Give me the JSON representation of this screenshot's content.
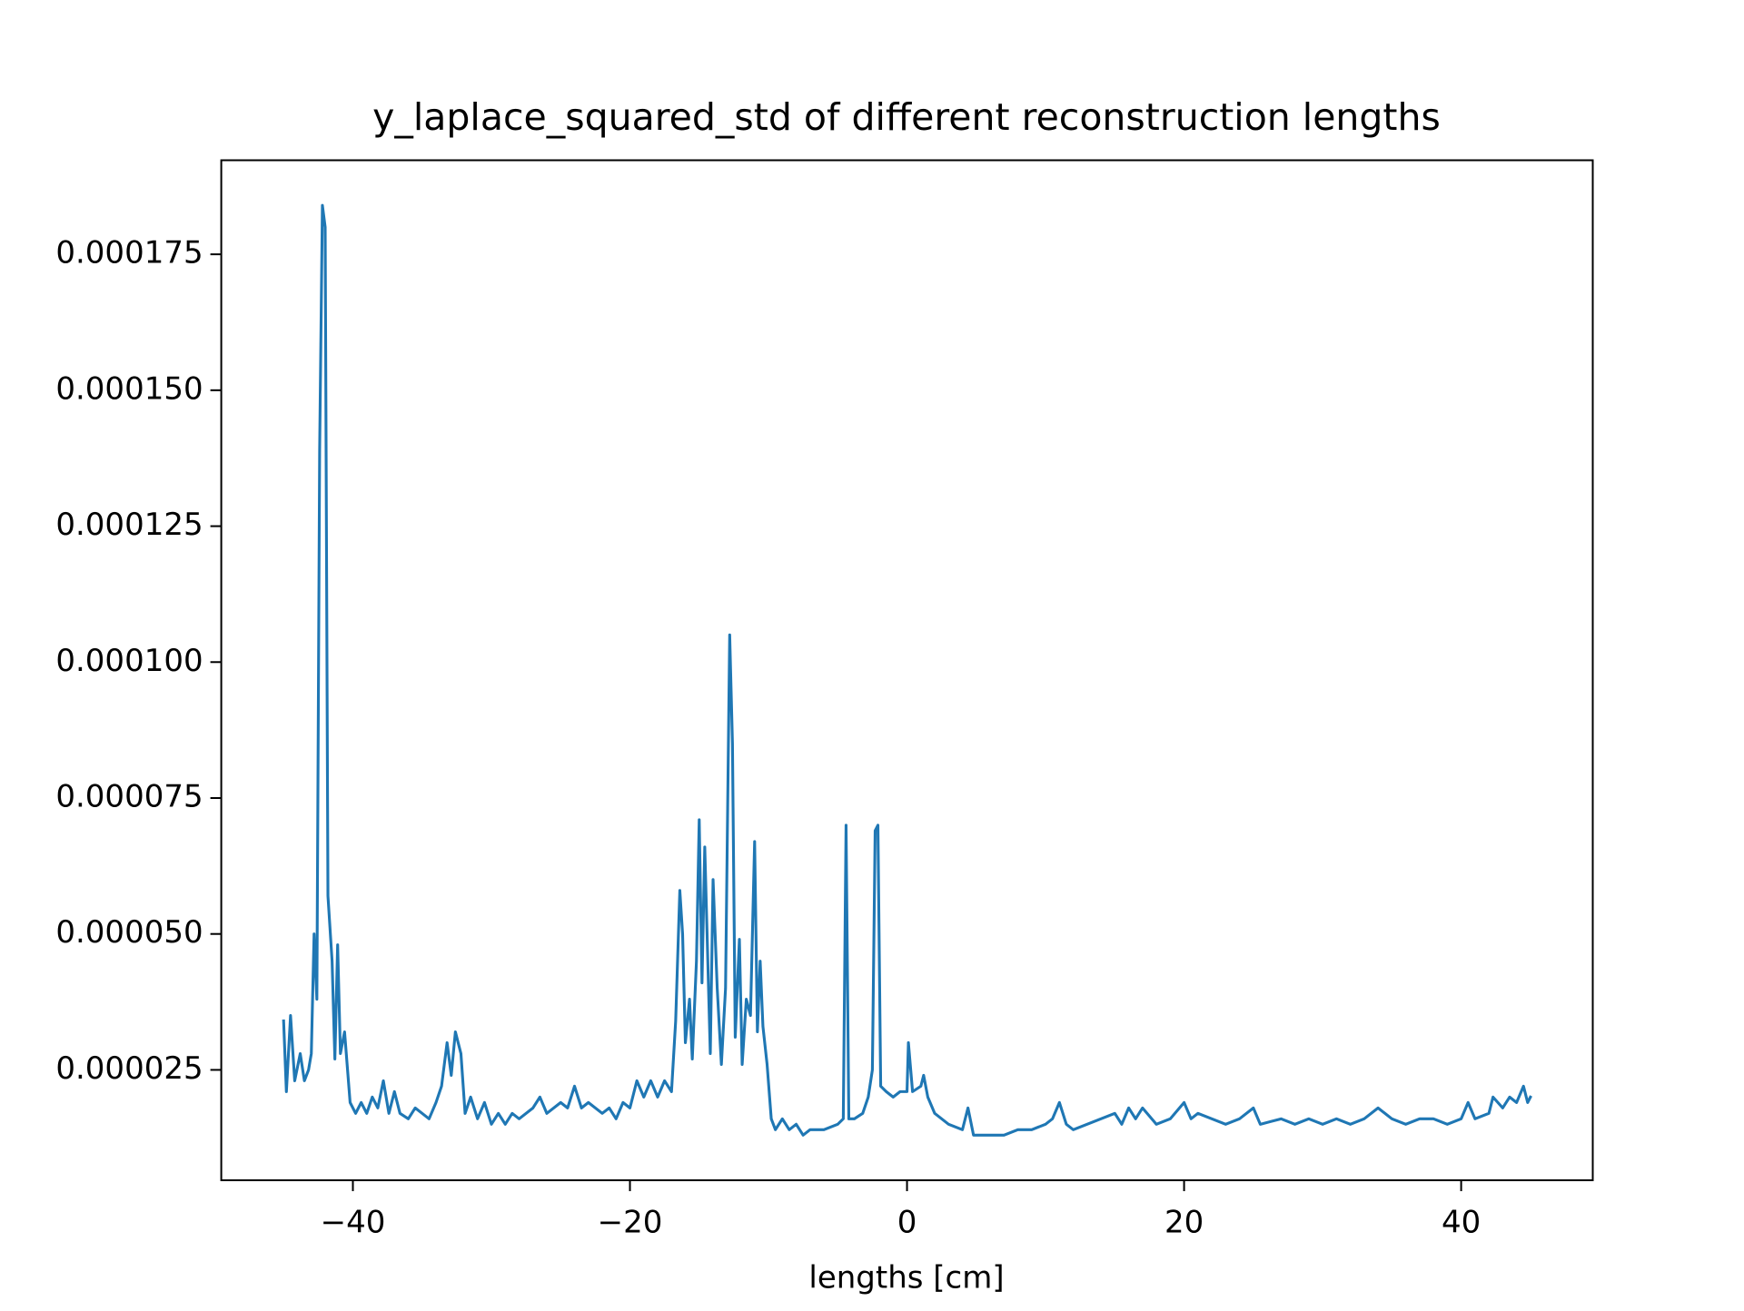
{
  "chart_data": {
    "type": "line",
    "title": "y_laplace_squared_std of different reconstruction lengths",
    "x_label": "lengths [cm]",
    "xlim": [
      -49.5,
      49.5
    ],
    "ylim": [
      4.7e-06,
      0.0001923
    ],
    "xticks": [
      {
        "value": -40,
        "label": "−40"
      },
      {
        "value": -20,
        "label": "−20"
      },
      0,
      20,
      40
    ],
    "yticks": [
      {
        "value": 2.5e-05,
        "label": "0.000025"
      },
      {
        "value": 5e-05,
        "label": "0.000050"
      },
      {
        "value": 7.5e-05,
        "label": "0.000075"
      },
      {
        "value": 0.0001,
        "label": "0.000100"
      },
      {
        "value": 0.000125,
        "label": "0.000125"
      },
      {
        "value": 0.00015,
        "label": "0.000150"
      },
      {
        "value": 0.000175,
        "label": "0.000175"
      }
    ],
    "grid": false,
    "color": "#1f77b4",
    "x": [
      -45,
      -44.8,
      -44.5,
      -44.2,
      -43.8,
      -43.5,
      -43.2,
      -43,
      -42.8,
      -42.6,
      -42.4,
      -42.2,
      -42,
      -41.8,
      -41.5,
      -41.3,
      -41.1,
      -40.9,
      -40.6,
      -40.2,
      -39.8,
      -39.4,
      -39,
      -38.6,
      -38.2,
      -37.8,
      -37.4,
      -37,
      -36.6,
      -36,
      -35.5,
      -35,
      -34.5,
      -34,
      -33.6,
      -33.2,
      -32.9,
      -32.6,
      -32.2,
      -31.9,
      -31.5,
      -31,
      -30.5,
      -30,
      -29.5,
      -29,
      -28.5,
      -28,
      -27,
      -26.5,
      -26,
      -25,
      -24.5,
      -24,
      -23.5,
      -23,
      -22,
      -21.5,
      -21,
      -20.5,
      -20,
      -19.5,
      -19,
      -18.5,
      -18,
      -17.5,
      -17,
      -16.7,
      -16.4,
      -16.2,
      -16,
      -15.7,
      -15.5,
      -15.2,
      -15,
      -14.8,
      -14.6,
      -14.4,
      -14.2,
      -14,
      -13.7,
      -13.4,
      -13.1,
      -12.8,
      -12.6,
      -12.4,
      -12.1,
      -11.9,
      -11.6,
      -11.3,
      -11,
      -10.8,
      -10.6,
      -10.4,
      -10.1,
      -9.8,
      -9.5,
      -9,
      -8.5,
      -8,
      -7.5,
      -7,
      -6,
      -5,
      -4.6,
      -4.4,
      -4.2,
      -3.8,
      -3.2,
      -2.8,
      -2.5,
      -2.3,
      -2.1,
      -1.9,
      -1.5,
      -1,
      -0.5,
      0,
      0.1,
      0.4,
      1,
      1.2,
      1.5,
      2,
      3,
      4,
      4.4,
      4.8,
      6,
      7,
      8,
      9,
      10,
      10.5,
      11,
      11.5,
      12,
      13,
      14,
      15,
      15.5,
      16,
      16.5,
      17,
      18,
      19,
      20,
      20.5,
      21,
      22,
      23,
      24,
      25,
      25.5,
      27,
      28,
      29,
      30,
      31,
      32,
      33,
      34,
      35,
      36,
      37,
      38,
      39,
      40,
      40.5,
      41,
      42,
      42.3,
      43,
      43.5,
      44,
      44.5,
      44.8,
      45
    ],
    "values": [
      3.4e-05,
      2.1e-05,
      3.5e-05,
      2.3e-05,
      2.8e-05,
      2.3e-05,
      2.5e-05,
      2.8e-05,
      5e-05,
      3.8e-05,
      0.000139,
      0.000184,
      0.00018,
      5.7e-05,
      4.5e-05,
      2.7e-05,
      4.8e-05,
      2.8e-05,
      3.2e-05,
      1.9e-05,
      1.7e-05,
      1.9e-05,
      1.7e-05,
      2e-05,
      1.8e-05,
      2.3e-05,
      1.7e-05,
      2.1e-05,
      1.7e-05,
      1.6e-05,
      1.8e-05,
      1.7e-05,
      1.6e-05,
      1.9e-05,
      2.2e-05,
      3e-05,
      2.4e-05,
      3.2e-05,
      2.8e-05,
      1.7e-05,
      2e-05,
      1.6e-05,
      1.9e-05,
      1.5e-05,
      1.7e-05,
      1.5e-05,
      1.7e-05,
      1.6e-05,
      1.8e-05,
      2e-05,
      1.7e-05,
      1.9e-05,
      1.8e-05,
      2.2e-05,
      1.8e-05,
      1.9e-05,
      1.7e-05,
      1.8e-05,
      1.6e-05,
      1.9e-05,
      1.8e-05,
      2.3e-05,
      2e-05,
      2.3e-05,
      2e-05,
      2.3e-05,
      2.1e-05,
      3.4e-05,
      5.8e-05,
      5e-05,
      3e-05,
      3.8e-05,
      2.7e-05,
      4.5e-05,
      7.1e-05,
      4.1e-05,
      6.6e-05,
      4.7e-05,
      2.8e-05,
      6e-05,
      4e-05,
      2.6e-05,
      4e-05,
      0.000105,
      8.5e-05,
      3.1e-05,
      4.9e-05,
      2.6e-05,
      3.8e-05,
      3.5e-05,
      6.7e-05,
      3.2e-05,
      4.5e-05,
      3.3e-05,
      2.6e-05,
      1.6e-05,
      1.4e-05,
      1.6e-05,
      1.4e-05,
      1.5e-05,
      1.3e-05,
      1.4e-05,
      1.4e-05,
      1.5e-05,
      1.6e-05,
      7e-05,
      1.6e-05,
      1.6e-05,
      1.7e-05,
      2e-05,
      2.5e-05,
      6.9e-05,
      7e-05,
      2.2e-05,
      2.1e-05,
      2e-05,
      2.1e-05,
      2.1e-05,
      3e-05,
      2.1e-05,
      2.2e-05,
      2.4e-05,
      2e-05,
      1.7e-05,
      1.5e-05,
      1.4e-05,
      1.8e-05,
      1.3e-05,
      1.3e-05,
      1.3e-05,
      1.4e-05,
      1.4e-05,
      1.5e-05,
      1.6e-05,
      1.9e-05,
      1.5e-05,
      1.4e-05,
      1.5e-05,
      1.6e-05,
      1.7e-05,
      1.5e-05,
      1.8e-05,
      1.6e-05,
      1.8e-05,
      1.5e-05,
      1.6e-05,
      1.9e-05,
      1.6e-05,
      1.7e-05,
      1.6e-05,
      1.5e-05,
      1.6e-05,
      1.8e-05,
      1.5e-05,
      1.6e-05,
      1.5e-05,
      1.6e-05,
      1.5e-05,
      1.6e-05,
      1.5e-05,
      1.6e-05,
      1.8e-05,
      1.6e-05,
      1.5e-05,
      1.6e-05,
      1.6e-05,
      1.5e-05,
      1.6e-05,
      1.9e-05,
      1.6e-05,
      1.7e-05,
      2e-05,
      1.8e-05,
      2e-05,
      1.9e-05,
      2.2e-05,
      1.9e-05,
      2e-05
    ]
  }
}
